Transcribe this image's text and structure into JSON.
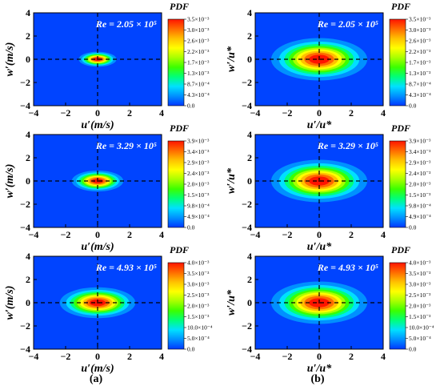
{
  "figure": {
    "panel_labels": [
      "(a)",
      "(b)"
    ],
    "colorbar_title": "PDF",
    "colors": {
      "background": "#0044ff",
      "ramp": [
        "#0037ff",
        "#0090ff",
        "#00e0ff",
        "#00ff7a",
        "#3bff00",
        "#a8ff00",
        "#ffff00",
        "#ffc000",
        "#ff6a00",
        "#ff1400"
      ]
    }
  },
  "chart_data": [
    {
      "type": "heatmap",
      "panel": "a1",
      "xlabel": "u′(m/s)",
      "ylabel": "w′(m/s)",
      "xlim": [
        -4,
        4
      ],
      "ylim": [
        -4,
        4
      ],
      "xticks": [
        "−4",
        "−2",
        "0",
        "2",
        "4"
      ],
      "yticks": [
        "−4",
        "−2",
        "0",
        "2",
        "4"
      ],
      "annotation": "Re = 2.05 × 10⁵",
      "center": [
        0,
        0
      ],
      "spread": [
        0.55,
        0.3
      ],
      "colorbar": {
        "title": "PDF",
        "ticks": [
          "3.5×10⁻³",
          "3.0×10⁻³",
          "2.6×10⁻³",
          "2.2×10⁻³",
          "1.7×10⁻³",
          "1.3×10⁻³",
          "8.7×10⁻⁴",
          "4.3×10⁻⁴",
          "0.0"
        ]
      },
      "guides": {
        "x": 0,
        "y": 0,
        "style": "dashed"
      }
    },
    {
      "type": "heatmap",
      "panel": "b1",
      "xlabel": "u′/u*",
      "ylabel": "w′/u*",
      "xlim": [
        -4,
        4
      ],
      "ylim": [
        -4,
        4
      ],
      "xticks": [
        "−4",
        "−2",
        "0",
        "2",
        "4"
      ],
      "yticks": [
        "−4",
        "−2",
        "0",
        "2",
        "4"
      ],
      "annotation": "Re = 2.05 × 10⁵",
      "center": [
        0,
        0
      ],
      "spread": [
        1.4,
        0.85
      ],
      "colorbar": {
        "title": "PDF",
        "ticks": [
          "3.5×10⁻³",
          "3.0×10⁻³",
          "2.6×10⁻³",
          "2.2×10⁻³",
          "1.7×10⁻³",
          "1.3×10⁻³",
          "8.7×10⁻⁴",
          "4.3×10⁻⁴",
          "0.0"
        ]
      },
      "guides": {
        "x": 0,
        "y": 0,
        "style": "dashed"
      }
    },
    {
      "type": "heatmap",
      "panel": "a2",
      "xlabel": "u′(m/s)",
      "ylabel": "w′(m/s)",
      "xlim": [
        -4,
        4
      ],
      "ylim": [
        -4,
        4
      ],
      "xticks": [
        "−4",
        "−2",
        "0",
        "2",
        "4"
      ],
      "yticks": [
        "−4",
        "−2",
        "0",
        "2",
        "4"
      ],
      "annotation": "Re = 3.29 × 10⁵",
      "center": [
        0,
        0
      ],
      "spread": [
        0.75,
        0.42
      ],
      "colorbar": {
        "title": "PDF",
        "ticks": [
          "3.9×10⁻³",
          "3.4×10⁻³",
          "2.9×10⁻³",
          "2.4×10⁻³",
          "2.0×10⁻³",
          "1.5×10⁻³",
          "9.8×10⁻⁴",
          "4.9×10⁻⁴",
          "0.0"
        ]
      },
      "guides": {
        "x": 0,
        "y": 0,
        "style": "dashed"
      }
    },
    {
      "type": "heatmap",
      "panel": "b2",
      "xlabel": "u′/u*",
      "ylabel": "w′/u*",
      "xlim": [
        -4,
        4
      ],
      "ylim": [
        -4,
        4
      ],
      "xticks": [
        "−4",
        "−2",
        "0",
        "2",
        "4"
      ],
      "yticks": [
        "−4",
        "−2",
        "0",
        "2",
        "4"
      ],
      "annotation": "Re = 3.29 × 10⁵",
      "center": [
        0,
        0
      ],
      "spread": [
        1.4,
        0.85
      ],
      "colorbar": {
        "title": "PDF",
        "ticks": [
          "3.9×10⁻³",
          "3.4×10⁻³",
          "2.9×10⁻³",
          "2.4×10⁻³",
          "2.0×10⁻³",
          "1.5×10⁻³",
          "9.8×10⁻⁴",
          "4.9×10⁻⁴",
          "0.0"
        ]
      },
      "guides": {
        "x": 0,
        "y": 0,
        "style": "dashed"
      }
    },
    {
      "type": "heatmap",
      "panel": "a3",
      "xlabel": "u′(m/s)",
      "ylabel": "w′(m/s)",
      "xlim": [
        -4,
        4
      ],
      "ylim": [
        -4,
        4
      ],
      "xticks": [
        "−4",
        "−2",
        "0",
        "2",
        "4"
      ],
      "yticks": [
        "−4",
        "−2",
        "0",
        "2",
        "4"
      ],
      "annotation": "Re = 4.93 × 10⁵",
      "center": [
        0,
        0
      ],
      "spread": [
        1.1,
        0.62
      ],
      "colorbar": {
        "title": "PDF",
        "ticks": [
          "4.0×10⁻³",
          "3.5×10⁻³",
          "3.0×10⁻³",
          "2.5×10⁻³",
          "2.0×10⁻³",
          "1.5×10⁻³",
          "10.0×10⁻⁴",
          "5.0×10⁻⁴",
          "0.0"
        ]
      },
      "guides": {
        "x": 0,
        "y": 0,
        "style": "dashed"
      }
    },
    {
      "type": "heatmap",
      "panel": "b3",
      "xlabel": "u′/u*",
      "ylabel": "w′/u*",
      "xlim": [
        -4,
        4
      ],
      "ylim": [
        -4,
        4
      ],
      "xticks": [
        "−4",
        "−2",
        "0",
        "2",
        "4"
      ],
      "yticks": [
        "−4",
        "−2",
        "0",
        "2",
        "4"
      ],
      "annotation": "Re = 4.93 × 10⁵",
      "center": [
        0,
        0
      ],
      "spread": [
        1.4,
        0.85
      ],
      "colorbar": {
        "title": "PDF",
        "ticks": [
          "4.0×10⁻³",
          "3.5×10⁻³",
          "3.0×10⁻³",
          "2.5×10⁻³",
          "2.0×10⁻³",
          "1.5×10⁻³",
          "10.0×10⁻⁴",
          "5.0×10⁻⁴",
          "0.0"
        ]
      },
      "guides": {
        "x": 0,
        "y": 0,
        "style": "dashed"
      }
    }
  ]
}
